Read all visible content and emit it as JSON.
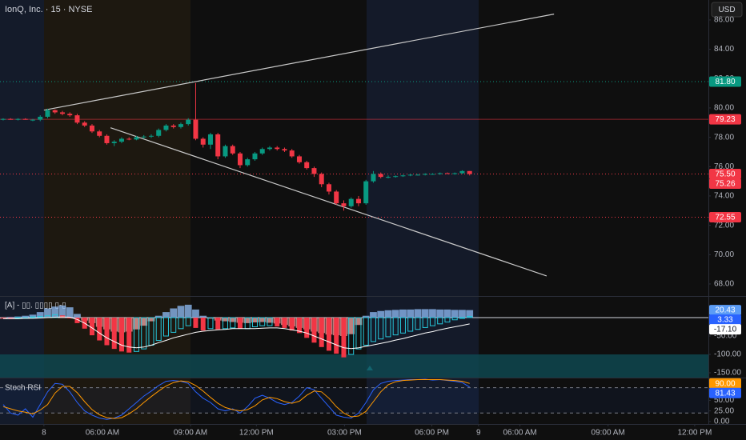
{
  "header": {
    "title": "IonQ, Inc. · 15 · NYSE",
    "currency": "USD"
  },
  "chart_data": [
    {
      "type": "candlestick",
      "x": [
        0,
        1,
        2,
        3,
        4,
        5,
        6,
        7,
        8,
        9,
        10,
        11,
        12,
        13,
        14,
        15,
        16,
        17,
        18,
        19,
        20,
        21,
        22,
        23,
        24,
        25,
        26,
        27,
        28,
        29,
        30,
        31,
        32,
        33,
        34,
        35,
        36,
        37,
        38,
        39,
        40,
        41,
        42,
        43,
        44,
        45,
        46,
        47,
        48,
        49,
        50,
        51,
        52,
        53,
        54,
        55,
        56,
        57,
        58,
        59,
        60,
        61,
        62,
        63
      ],
      "open": [
        79.2,
        79.25,
        79.2,
        79.25,
        79.2,
        79.2,
        79.4,
        79.85,
        79.7,
        79.6,
        79.5,
        79.0,
        78.8,
        78.4,
        78.1,
        77.6,
        77.7,
        77.9,
        77.85,
        78.0,
        78.05,
        78.1,
        78.5,
        78.8,
        78.7,
        78.9,
        79.2,
        77.9,
        77.5,
        78.2,
        76.7,
        77.4,
        76.9,
        76.1,
        76.5,
        76.9,
        77.2,
        77.3,
        77.2,
        77.1,
        76.7,
        76.3,
        75.9,
        75.5,
        74.8,
        74.3,
        73.5,
        73.3,
        73.8,
        73.5,
        75.0,
        75.5,
        75.3,
        75.3,
        75.35,
        75.4,
        75.45,
        75.45,
        75.5,
        75.5,
        75.55,
        75.5,
        75.55,
        75.7
      ],
      "high": [
        79.3,
        79.3,
        79.3,
        79.3,
        79.25,
        79.5,
        79.95,
        79.9,
        79.8,
        79.7,
        79.6,
        79.1,
        78.9,
        78.5,
        78.2,
        77.8,
        78.0,
        78.0,
        78.1,
        78.15,
        78.2,
        78.6,
        78.9,
        78.9,
        79.0,
        79.3,
        81.7,
        78.0,
        78.3,
        78.3,
        77.5,
        77.5,
        77.0,
        76.6,
        77.0,
        77.3,
        77.4,
        77.4,
        77.3,
        77.2,
        76.8,
        76.4,
        76.0,
        75.6,
        74.9,
        74.4,
        73.7,
        73.9,
        74.0,
        75.1,
        75.7,
        75.6,
        75.4,
        75.4,
        75.45,
        75.5,
        75.5,
        75.55,
        75.55,
        75.6,
        75.6,
        75.6,
        75.75,
        75.7
      ],
      "low": [
        79.15,
        79.2,
        79.15,
        79.2,
        79.1,
        79.1,
        79.3,
        79.6,
        79.5,
        79.4,
        78.9,
        78.7,
        78.3,
        78.0,
        77.5,
        77.4,
        77.6,
        77.8,
        77.8,
        77.9,
        77.95,
        78.0,
        78.4,
        78.6,
        78.6,
        78.8,
        77.8,
        77.3,
        77.2,
        76.5,
        76.6,
        76.8,
        75.9,
        76.0,
        76.4,
        76.8,
        77.1,
        77.1,
        77.0,
        76.6,
        76.2,
        75.8,
        75.3,
        74.6,
        74.1,
        73.4,
        73.0,
        73.2,
        73.3,
        73.4,
        74.9,
        75.2,
        75.2,
        75.25,
        75.3,
        75.35,
        75.4,
        75.4,
        75.45,
        75.45,
        75.5,
        75.45,
        75.5,
        75.4
      ],
      "close": [
        79.25,
        79.2,
        79.25,
        79.2,
        79.2,
        79.4,
        79.85,
        79.7,
        79.6,
        79.5,
        79.0,
        78.8,
        78.4,
        78.1,
        77.6,
        77.7,
        77.9,
        77.85,
        78.0,
        78.05,
        78.1,
        78.5,
        78.8,
        78.7,
        78.9,
        79.2,
        77.9,
        77.5,
        78.2,
        76.7,
        77.4,
        76.9,
        76.1,
        76.5,
        76.9,
        77.2,
        77.3,
        77.2,
        77.1,
        76.7,
        76.3,
        75.9,
        75.5,
        74.8,
        74.3,
        73.5,
        73.3,
        73.8,
        73.5,
        75.0,
        75.5,
        75.3,
        75.3,
        75.35,
        75.4,
        75.45,
        75.45,
        75.5,
        75.5,
        75.55,
        75.5,
        75.55,
        75.7,
        75.5
      ],
      "up_color": "#089981",
      "down_color": "#f23645",
      "xlim": [
        -0.43,
        95.25
      ],
      "xticks": [
        {
          "value": 5.5,
          "label": "8"
        },
        {
          "value": 13.4,
          "label": "06:00 AM"
        },
        {
          "value": 25.3,
          "label": "09:00 AM"
        },
        {
          "value": 34.2,
          "label": "12:00 PM"
        },
        {
          "value": 46.1,
          "label": "03:00 PM"
        },
        {
          "value": 57.9,
          "label": "06:00 PM"
        },
        {
          "value": 64.2,
          "label": "9"
        },
        {
          "value": 69.8,
          "label": "06:00 AM"
        },
        {
          "value": 81.7,
          "label": "09:00 AM"
        },
        {
          "value": 93.4,
          "label": "12:00 PM"
        }
      ],
      "ylim": [
        67.18,
        87.36
      ],
      "yticks": [
        {
          "value": 68,
          "label": "68.00"
        },
        {
          "value": 70,
          "label": "70.00"
        },
        {
          "value": 72,
          "label": "72.00"
        },
        {
          "value": 74,
          "label": "74.00"
        },
        {
          "value": 76,
          "label": "76.00"
        },
        {
          "value": 78,
          "label": "78.00"
        },
        {
          "value": 80,
          "label": "80.00"
        },
        {
          "value": 82,
          "label": "82.00"
        },
        {
          "value": 84,
          "label": "84.00"
        },
        {
          "value": 86,
          "label": "86.00"
        }
      ],
      "grid": false,
      "levels": [
        {
          "value": 81.8,
          "label": "81.80",
          "color": "#089981",
          "style": "dotted"
        },
        {
          "value": 79.23,
          "label": "79.23",
          "color": "#f23645",
          "style": "solid"
        },
        {
          "value": 75.5,
          "label": "75.50",
          "color": "#f23645",
          "style": "dotted"
        },
        {
          "value": 75.26,
          "label": "75.26",
          "color": "#f23645",
          "style": "none"
        },
        {
          "value": 72.55,
          "label": "72.55",
          "color": "#f23645",
          "style": "dotted"
        }
      ],
      "trendlines": [
        {
          "x": [
            5.5,
            74.4
          ],
          "y": [
            79.85,
            86.4
          ],
          "color": "#c8c8c8"
        },
        {
          "x": [
            14.5,
            73.4
          ],
          "y": [
            78.65,
            68.55
          ],
          "color": "#c8c8c8"
        }
      ]
    },
    {
      "type": "macd",
      "title": "[A] - ▯▯. ▯▯▯▯ ▯-▯",
      "x": [
        0,
        1,
        2,
        3,
        4,
        5,
        6,
        7,
        8,
        9,
        10,
        11,
        12,
        13,
        14,
        15,
        16,
        17,
        18,
        19,
        20,
        21,
        22,
        23,
        24,
        25,
        26,
        27,
        28,
        29,
        30,
        31,
        32,
        33,
        34,
        35,
        36,
        37,
        38,
        39,
        40,
        41,
        42,
        43,
        44,
        45,
        46,
        47,
        48,
        49,
        50,
        51,
        52,
        53,
        54,
        55,
        56,
        57,
        58,
        59,
        60,
        61,
        62,
        63
      ],
      "ylim": [
        -163,
        58.7
      ],
      "yticks": [
        {
          "value": -50,
          "label": "-50.00"
        },
        {
          "value": -100,
          "label": "-100.00"
        },
        {
          "value": -150,
          "label": "-150.00"
        }
      ],
      "zone": [
        -163,
        -100
      ],
      "zone_color": "#0e4a52",
      "histogram": {
        "values": [
          -3,
          2,
          3,
          5,
          8,
          15,
          25,
          30,
          33,
          28,
          10,
          -8,
          -15,
          -25,
          -32,
          -38,
          -40,
          -38,
          -32,
          -22,
          -10,
          5,
          15,
          25,
          32,
          35,
          22,
          5,
          -3,
          -8,
          -10,
          -12,
          -14,
          -15,
          -13,
          -12,
          -14,
          -16,
          -20,
          -24,
          -28,
          -32,
          -38,
          -42,
          -46,
          -48,
          -50,
          -45,
          -20,
          5,
          15,
          18,
          20,
          21,
          22,
          22,
          23,
          23,
          23,
          22,
          22,
          21,
          21,
          20.43
        ],
        "color_up": "#90bff9",
        "color_down": "#f5a6a4",
        "last_label": "20.43",
        "label_color": "#5b9cf6"
      },
      "macd": {
        "values": [
          -2,
          -3,
          -2,
          0,
          2,
          3,
          5,
          8,
          6,
          0,
          -15,
          -30,
          -48,
          -62,
          -75,
          -85,
          -92,
          -95,
          -92,
          -85,
          -75,
          -62,
          -50,
          -40,
          -30,
          -22,
          -28,
          -35,
          -30,
          -32,
          -30,
          -28,
          -30,
          -30,
          -25,
          -22,
          -22,
          -24,
          -28,
          -35,
          -42,
          -55,
          -68,
          -80,
          -90,
          -98,
          -108,
          -100,
          -85,
          -75,
          -65,
          -58,
          -52,
          -47,
          -42,
          -37,
          -32,
          -27,
          -22,
          -17,
          -12,
          -6,
          -1,
          3.33
        ],
        "color_up": "#26c6da",
        "color_down": "#f23645",
        "last_label": "3.33",
        "label_color": "#2962ff"
      },
      "signal": {
        "values": [
          -3,
          -3,
          -3,
          -2,
          -2,
          -1,
          0,
          1,
          2,
          1,
          -5,
          -15,
          -28,
          -42,
          -55,
          -65,
          -75,
          -80,
          -82,
          -80,
          -75,
          -68,
          -62,
          -55,
          -50,
          -45,
          -40,
          -37,
          -35,
          -33,
          -32,
          -30,
          -30,
          -30,
          -30,
          -29,
          -28,
          -28,
          -30,
          -33,
          -37,
          -42,
          -50,
          -58,
          -66,
          -74,
          -82,
          -84,
          -82,
          -78,
          -74,
          -70,
          -66,
          -61,
          -57,
          -52,
          -47,
          -42,
          -38,
          -33,
          -29,
          -25,
          -21,
          -17.1
        ],
        "color": "#ffffff",
        "last_label": "-17.10",
        "label_color": "#ffffff"
      }
    },
    {
      "type": "line",
      "title": "Stoch RSI",
      "x": [
        0,
        1,
        2,
        3,
        4,
        5,
        6,
        7,
        8,
        9,
        10,
        11,
        12,
        13,
        14,
        15,
        16,
        17,
        18,
        19,
        20,
        21,
        22,
        23,
        24,
        25,
        26,
        27,
        28,
        29,
        30,
        31,
        32,
        33,
        34,
        35,
        36,
        37,
        38,
        39,
        40,
        41,
        42,
        43,
        44,
        45,
        46,
        47,
        48,
        49,
        50,
        51,
        52,
        53,
        54,
        55,
        56,
        57,
        58,
        59,
        60,
        61,
        62,
        63
      ],
      "ylim": [
        -6,
        100
      ],
      "yticks": [
        {
          "value": 0,
          "label": "0.00"
        },
        {
          "value": 25,
          "label": "25.00"
        },
        {
          "value": 50,
          "label": "50.00"
        }
      ],
      "bands": [
        20,
        80
      ],
      "series": [
        {
          "color": "#2962ff",
          "last_label": "81.43",
          "values": [
            40,
            20,
            15,
            30,
            10,
            40,
            70,
            90,
            88,
            70,
            45,
            25,
            15,
            8,
            5,
            8,
            15,
            30,
            45,
            60,
            72,
            85,
            95,
            97,
            95,
            90,
            70,
            55,
            45,
            30,
            25,
            30,
            20,
            35,
            55,
            62,
            55,
            45,
            40,
            45,
            60,
            80,
            75,
            55,
            35,
            15,
            10,
            8,
            20,
            45,
            75,
            90,
            95,
            97,
            98,
            99,
            99,
            100,
            98,
            99,
            97,
            95,
            92,
            81.43
          ]
        },
        {
          "color": "#ff9800",
          "last_label": "90.00",
          "values": [
            35,
            30,
            25,
            22,
            18,
            27,
            40,
            67,
            83,
            83,
            68,
            47,
            28,
            16,
            9,
            7,
            9,
            18,
            30,
            45,
            59,
            72,
            84,
            92,
            96,
            94,
            85,
            72,
            57,
            43,
            33,
            28,
            25,
            28,
            37,
            51,
            57,
            54,
            47,
            43,
            48,
            62,
            72,
            70,
            55,
            35,
            20,
            11,
            13,
            24,
            47,
            70,
            87,
            94,
            97,
            98,
            99,
            99,
            99,
            99,
            98,
            97,
            95,
            90
          ]
        }
      ]
    }
  ]
}
